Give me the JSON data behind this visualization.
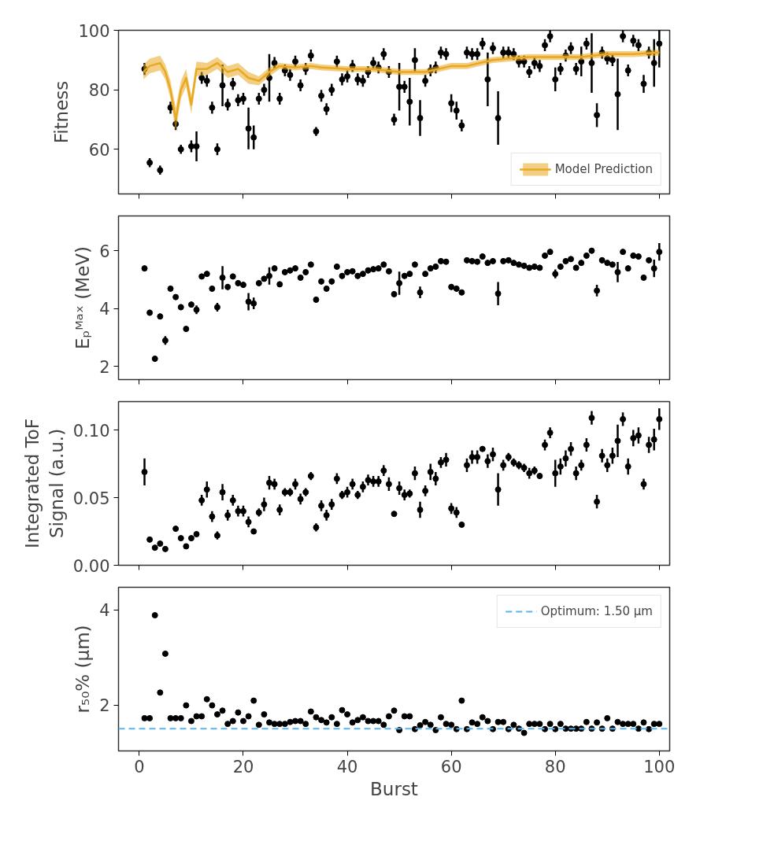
{
  "chart_data": [
    {
      "type": "scatter",
      "ylabel": "Fitness",
      "legend": "bottom right",
      "tick_labels": "y",
      "marker": "circle",
      "xlim": [
        -4,
        102
      ],
      "xticks": [
        0,
        20,
        40,
        60,
        80,
        100
      ],
      "ylim": [
        45,
        100
      ],
      "yticks": [
        60,
        80,
        100
      ],
      "x": [
        1,
        2,
        3,
        4,
        5,
        6,
        7,
        8,
        9,
        10,
        11,
        12,
        13,
        14,
        15,
        16,
        17,
        18,
        19,
        20,
        21,
        22,
        23,
        24,
        25,
        26,
        27,
        28,
        29,
        30,
        31,
        32,
        33,
        34,
        35,
        36,
        37,
        38,
        39,
        40,
        41,
        42,
        43,
        44,
        45,
        46,
        47,
        48,
        49,
        50,
        51,
        52,
        53,
        54,
        55,
        56,
        57,
        58,
        59,
        60,
        61,
        62,
        63,
        64,
        65,
        66,
        67,
        68,
        69,
        70,
        71,
        72,
        73,
        74,
        75,
        76,
        77,
        78,
        79,
        80,
        81,
        82,
        83,
        84,
        85,
        86,
        87,
        88,
        89,
        90,
        91,
        92,
        93,
        94,
        95,
        96,
        97,
        98,
        99,
        100
      ],
      "series": [
        {
          "color": "#000000",
          "values": [
            87,
            55.5,
            null,
            53,
            null,
            74,
            68.5,
            60,
            null,
            61,
            61,
            84,
            83,
            74,
            60,
            81.5,
            75,
            82,
            76.5,
            77,
            67,
            64,
            77,
            80,
            84,
            89,
            77,
            86.5,
            85,
            89.5,
            81.5,
            87,
            91.5,
            66,
            78,
            73.5,
            80,
            89.5,
            83.5,
            84.5,
            88,
            83.5,
            83,
            86,
            89,
            87.5,
            92,
            86,
            70,
            81,
            81,
            76,
            90,
            70.5,
            83,
            86.5,
            87.5,
            92.5,
            92,
            75.5,
            73,
            68,
            92.5,
            92,
            92,
            95.5,
            83.5,
            94,
            70.5,
            92.5,
            92.5,
            92,
            89.5,
            89.5,
            86,
            89,
            88,
            95,
            98,
            83.5,
            87,
            91.5,
            94,
            87,
            89.5,
            95.5,
            89,
            71.5,
            92.5,
            90.5,
            90,
            78.5,
            98,
            86.5,
            96.5,
            95,
            82,
            92.5,
            89,
            95.5
          ],
          "errors": [
            2,
            1.5,
            null,
            1.5,
            null,
            2,
            2,
            1.5,
            null,
            2,
            5,
            2,
            2,
            2,
            2,
            7,
            2,
            2,
            2,
            2,
            7,
            4,
            2,
            2,
            8,
            2,
            2,
            2,
            2,
            2,
            2,
            2,
            2,
            1.5,
            2,
            2,
            2,
            2,
            2,
            2,
            2,
            2,
            2,
            2,
            2,
            2,
            2,
            2,
            2,
            8,
            2,
            8,
            4,
            6,
            2,
            2,
            2,
            2,
            2,
            3,
            3,
            2,
            2,
            2,
            2,
            2,
            9,
            2,
            9,
            2,
            2,
            2,
            2,
            2,
            2,
            2,
            2,
            2,
            2,
            4,
            2,
            2,
            2,
            2,
            5,
            2,
            10,
            4,
            2,
            2,
            2,
            12,
            2,
            2,
            2,
            2,
            3,
            2,
            8,
            8
          ]
        },
        {
          "type": "line",
          "marker": "none",
          "name": "Model Prediction",
          "color": "#e8a820",
          "x": [
            0.8,
            2,
            4,
            5,
            6,
            7,
            8,
            9,
            10,
            11,
            13,
            15,
            17,
            19,
            21,
            23,
            25,
            27,
            30,
            33,
            35,
            40,
            45,
            50,
            55,
            60,
            63,
            68,
            71,
            75,
            80,
            85,
            90,
            95,
            100
          ],
          "values": [
            86,
            88,
            89,
            86,
            80,
            70,
            80,
            84,
            75,
            87,
            87,
            89,
            86,
            87,
            84,
            83,
            86,
            88,
            87.5,
            88,
            87.5,
            87,
            87,
            86,
            86,
            88,
            88,
            90,
            90.5,
            91,
            91,
            91,
            92,
            92,
            92.5
          ],
          "lower": [
            83.5,
            85.5,
            86.5,
            83.5,
            77,
            66,
            77,
            81,
            72,
            84.5,
            85,
            87,
            84,
            85,
            82,
            81.5,
            84.5,
            87,
            86.5,
            87,
            86.5,
            86,
            86,
            85,
            85,
            87,
            87,
            89,
            89.5,
            90,
            90,
            90,
            91,
            91,
            91.5
          ],
          "upper": [
            88.5,
            90.5,
            91.5,
            88.5,
            83,
            74,
            83,
            87,
            78,
            89.5,
            89,
            91,
            88,
            89,
            86,
            84.5,
            87.5,
            89,
            88.5,
            89,
            88.5,
            88,
            88,
            87,
            87,
            89,
            89,
            91,
            91.5,
            92,
            92,
            92,
            93,
            93,
            93.5
          ]
        }
      ]
    },
    {
      "type": "scatter",
      "ylabel": "Eₚᴹᵃˣ (MeV)",
      "tick_labels": "y",
      "marker": "circle",
      "xlim": [
        -4,
        102
      ],
      "xticks": [
        0,
        20,
        40,
        60,
        80,
        100
      ],
      "ylim": [
        1.55,
        7.2
      ],
      "yticks": [
        2,
        4,
        6
      ],
      "x": [
        1,
        2,
        3,
        4,
        5,
        6,
        7,
        8,
        9,
        10,
        11,
        12,
        13,
        14,
        15,
        16,
        17,
        18,
        19,
        20,
        21,
        22,
        23,
        24,
        25,
        26,
        27,
        28,
        29,
        30,
        31,
        32,
        33,
        34,
        35,
        36,
        37,
        38,
        39,
        40,
        41,
        42,
        43,
        44,
        45,
        46,
        47,
        48,
        49,
        50,
        51,
        52,
        53,
        54,
        55,
        56,
        57,
        58,
        59,
        60,
        61,
        62,
        63,
        64,
        65,
        66,
        67,
        68,
        69,
        70,
        71,
        72,
        73,
        74,
        75,
        76,
        77,
        78,
        79,
        80,
        81,
        82,
        83,
        84,
        85,
        86,
        87,
        88,
        89,
        90,
        91,
        92,
        93,
        94,
        95,
        96,
        97,
        98,
        99,
        100
      ],
      "series": [
        {
          "color": "#000000",
          "values": [
            5.39,
            3.86,
            2.27,
            3.73,
            2.9,
            4.69,
            4.4,
            4.05,
            3.3,
            4.14,
            3.96,
            5.11,
            5.2,
            4.69,
            4.05,
            5.07,
            4.75,
            5.11,
            4.88,
            4.82,
            4.24,
            4.18,
            4.88,
            5.03,
            5.13,
            5.39,
            4.84,
            5.26,
            5.32,
            5.39,
            5.07,
            5.26,
            5.52,
            4.31,
            4.94,
            4.69,
            4.94,
            5.45,
            5.13,
            5.26,
            5.29,
            5.13,
            5.2,
            5.32,
            5.36,
            5.39,
            5.52,
            5.29,
            4.5,
            4.88,
            5.13,
            5.2,
            5.52,
            4.56,
            5.2,
            5.39,
            5.45,
            5.64,
            5.62,
            4.75,
            4.69,
            4.56,
            5.67,
            5.64,
            5.62,
            5.8,
            5.58,
            5.64,
            4.52,
            5.64,
            5.67,
            5.58,
            5.52,
            5.48,
            5.41,
            5.45,
            5.41,
            5.83,
            5.96,
            5.2,
            5.45,
            5.64,
            5.71,
            5.41,
            5.58,
            5.83,
            6.0,
            4.62,
            5.67,
            5.58,
            5.52,
            5.26,
            5.96,
            5.39,
            5.83,
            5.8,
            5.07,
            5.67,
            5.39,
            5.96
          ],
          "errors": [
            0.1,
            0.1,
            0.1,
            0.1,
            0.15,
            0.1,
            0.1,
            0.1,
            0.1,
            0.1,
            0.15,
            0.1,
            0.1,
            0.1,
            0.15,
            0.4,
            0.1,
            0.1,
            0.1,
            0.1,
            0.3,
            0.2,
            0.1,
            0.1,
            0.3,
            0.1,
            0.1,
            0.1,
            0.1,
            0.1,
            0.1,
            0.1,
            0.1,
            0.1,
            0.1,
            0.1,
            0.1,
            0.1,
            0.1,
            0.1,
            0.1,
            0.1,
            0.1,
            0.1,
            0.1,
            0.1,
            0.1,
            0.1,
            0.1,
            0.4,
            0.1,
            0.1,
            0.1,
            0.2,
            0.1,
            0.1,
            0.1,
            0.1,
            0.1,
            0.1,
            0.1,
            0.1,
            0.1,
            0.1,
            0.1,
            0.1,
            0.1,
            0.1,
            0.4,
            0.1,
            0.1,
            0.1,
            0.1,
            0.1,
            0.1,
            0.1,
            0.1,
            0.1,
            0.1,
            0.15,
            0.1,
            0.1,
            0.1,
            0.1,
            0.1,
            0.1,
            0.1,
            0.2,
            0.1,
            0.1,
            0.1,
            0.35,
            0.1,
            0.1,
            0.1,
            0.1,
            0.1,
            0.1,
            0.3,
            0.3
          ]
        }
      ]
    },
    {
      "type": "scatter",
      "ylabel": "Integrated ToF\nSignal (a.u.)",
      "tick_labels": "y",
      "marker": "circle",
      "xlim": [
        -4,
        102
      ],
      "xticks": [
        0,
        20,
        40,
        60,
        80,
        100
      ],
      "ylim": [
        0,
        0.121
      ],
      "yticks": [
        {
          "value": 0,
          "label": "0.00"
        },
        {
          "value": 0.05,
          "label": "0.05"
        },
        {
          "value": 0.1,
          "label": "0.10"
        }
      ],
      "x": [
        1,
        2,
        3,
        4,
        5,
        6,
        7,
        8,
        9,
        10,
        11,
        12,
        13,
        14,
        15,
        16,
        17,
        18,
        19,
        20,
        21,
        22,
        23,
        24,
        25,
        26,
        27,
        28,
        29,
        30,
        31,
        32,
        33,
        34,
        35,
        36,
        37,
        38,
        39,
        40,
        41,
        42,
        43,
        44,
        45,
        46,
        47,
        48,
        49,
        50,
        51,
        52,
        53,
        54,
        55,
        56,
        57,
        58,
        59,
        60,
        61,
        62,
        63,
        64,
        65,
        66,
        67,
        68,
        69,
        70,
        71,
        72,
        73,
        74,
        75,
        76,
        77,
        78,
        79,
        80,
        81,
        82,
        83,
        84,
        85,
        86,
        87,
        88,
        89,
        90,
        91,
        92,
        93,
        94,
        95,
        96,
        97,
        98,
        99,
        100
      ],
      "series": [
        {
          "color": "#000000",
          "values": [
            0.069,
            0.019,
            0.013,
            0.016,
            0.012,
            null,
            0.027,
            0.02,
            0.014,
            0.02,
            0.023,
            0.048,
            0.056,
            0.036,
            0.022,
            0.054,
            0.037,
            0.048,
            0.04,
            0.04,
            0.032,
            0.025,
            0.039,
            0.045,
            0.061,
            0.06,
            0.041,
            0.054,
            0.054,
            0.06,
            0.049,
            0.054,
            0.066,
            0.028,
            0.044,
            0.037,
            0.045,
            0.064,
            0.052,
            0.054,
            0.06,
            0.052,
            0.058,
            0.063,
            0.062,
            0.062,
            0.07,
            0.06,
            0.038,
            0.057,
            0.052,
            0.053,
            0.068,
            0.041,
            0.055,
            0.069,
            0.064,
            0.076,
            0.078,
            0.042,
            0.039,
            0.03,
            0.074,
            0.08,
            0.08,
            0.086,
            0.077,
            0.082,
            0.056,
            0.074,
            0.08,
            0.076,
            0.074,
            0.072,
            0.068,
            0.07,
            0.066,
            0.089,
            0.098,
            0.068,
            0.073,
            0.079,
            0.086,
            0.068,
            0.074,
            0.089,
            0.109,
            0.047,
            0.081,
            0.074,
            0.081,
            0.092,
            0.108,
            0.073,
            0.094,
            0.096,
            0.06,
            0.089,
            0.093,
            0.108
          ],
          "errors": [
            0.01,
            0.002,
            0.002,
            0.002,
            0.002,
            null,
            0.002,
            0.002,
            0.002,
            0.002,
            0.002,
            0.004,
            0.006,
            0.004,
            0.003,
            0.006,
            0.004,
            0.004,
            0.004,
            0.004,
            0.004,
            0.002,
            0.003,
            0.005,
            0.005,
            0.004,
            0.004,
            0.003,
            0.003,
            0.004,
            0.004,
            0.003,
            0.003,
            0.003,
            0.004,
            0.004,
            0.004,
            0.004,
            0.003,
            0.004,
            0.004,
            0.003,
            0.004,
            0.004,
            0.004,
            0.004,
            0.004,
            0.005,
            0.002,
            0.005,
            0.004,
            0.003,
            0.005,
            0.006,
            0.004,
            0.006,
            0.005,
            0.004,
            0.005,
            0.004,
            0.004,
            0.002,
            0.005,
            0.005,
            0.005,
            0.002,
            0.005,
            0.005,
            0.012,
            0.004,
            0.003,
            0.003,
            0.003,
            0.003,
            0.004,
            0.003,
            0.002,
            0.004,
            0.004,
            0.01,
            0.006,
            0.006,
            0.005,
            0.005,
            0.004,
            0.005,
            0.005,
            0.005,
            0.005,
            0.005,
            0.006,
            0.012,
            0.005,
            0.006,
            0.006,
            0.006,
            0.004,
            0.006,
            0.008,
            0.008
          ]
        }
      ]
    },
    {
      "type": "scatter",
      "ylabel": "r₅₀% (µm)",
      "xlabel": "Burst",
      "legend": "top right",
      "marker": "circle",
      "xlim": [
        -4,
        102
      ],
      "xticks": [
        0,
        20,
        40,
        60,
        80,
        100
      ],
      "ylim": [
        1.03,
        4.48
      ],
      "yticks": [
        2,
        4
      ],
      "x": [
        1,
        2,
        3,
        4,
        5,
        6,
        7,
        8,
        9,
        10,
        11,
        12,
        13,
        14,
        15,
        16,
        17,
        18,
        19,
        20,
        21,
        22,
        23,
        24,
        25,
        26,
        27,
        28,
        29,
        30,
        31,
        32,
        33,
        34,
        35,
        36,
        37,
        38,
        39,
        40,
        41,
        42,
        43,
        44,
        45,
        46,
        47,
        48,
        49,
        50,
        51,
        52,
        53,
        54,
        55,
        56,
        57,
        58,
        59,
        60,
        61,
        62,
        63,
        64,
        65,
        66,
        67,
        68,
        69,
        70,
        71,
        72,
        73,
        74,
        75,
        76,
        77,
        78,
        79,
        80,
        81,
        82,
        83,
        84,
        85,
        86,
        87,
        88,
        89,
        90,
        91,
        92,
        93,
        94,
        95,
        96,
        97,
        98,
        99,
        100
      ],
      "series": [
        {
          "color": "#000000",
          "values": [
            1.72,
            1.72,
            3.89,
            2.26,
            3.08,
            1.72,
            1.72,
            1.72,
            1.99,
            1.66,
            1.76,
            1.76,
            2.12,
            1.99,
            1.8,
            1.88,
            1.6,
            1.66,
            1.84,
            1.66,
            1.76,
            2.09,
            1.58,
            1.8,
            1.63,
            1.6,
            1.6,
            1.6,
            1.64,
            1.66,
            1.66,
            1.6,
            1.86,
            1.74,
            1.68,
            1.63,
            1.74,
            1.6,
            1.89,
            1.8,
            1.63,
            1.68,
            1.74,
            1.66,
            1.66,
            1.66,
            1.58,
            1.76,
            1.88,
            1.47,
            1.76,
            1.76,
            1.49,
            1.57,
            1.64,
            1.58,
            1.47,
            1.74,
            1.6,
            1.58,
            1.49,
            2.09,
            1.49,
            1.63,
            1.6,
            1.74,
            1.66,
            1.49,
            1.64,
            1.64,
            1.49,
            1.58,
            1.5,
            1.41,
            1.6,
            1.6,
            1.6,
            1.49,
            1.6,
            1.49,
            1.6,
            1.5,
            1.5,
            1.5,
            1.5,
            1.64,
            1.5,
            1.63,
            1.5,
            1.72,
            1.5,
            1.64,
            1.6,
            1.6,
            1.6,
            1.5,
            1.63,
            1.49,
            1.6,
            1.6
          ]
        }
      ],
      "ref_lines": [
        {
          "axis": "y",
          "value": 1.5,
          "label": "Optimum: 1.50 µm",
          "color": "#5ab4f0",
          "line_style": "dashed"
        }
      ]
    }
  ]
}
